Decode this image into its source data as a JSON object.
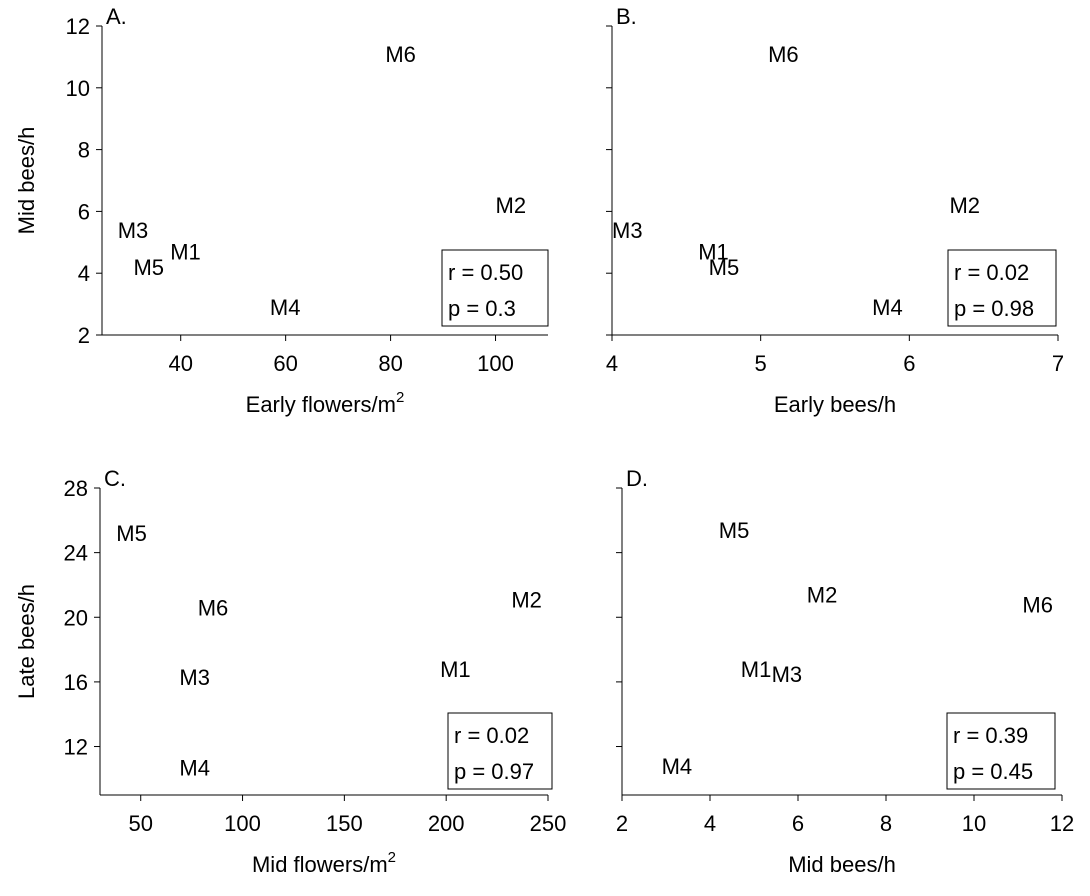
{
  "chart_data": [
    {
      "type": "scatter",
      "panel": "A.",
      "xlabel": "Early flowers/m",
      "xlabel_sup": "2",
      "ylabel": "Mid bees/h",
      "xlim": [
        25,
        110
      ],
      "ylim": [
        2,
        12
      ],
      "xticks": [
        40,
        60,
        80,
        100
      ],
      "yticks": [
        2,
        4,
        6,
        8,
        10,
        12
      ],
      "points": [
        {
          "label": "M1",
          "x": 38,
          "y": 4.7
        },
        {
          "label": "M2",
          "x": 100,
          "y": 6.2
        },
        {
          "label": "M3",
          "x": 28,
          "y": 5.4
        },
        {
          "label": "M4",
          "x": 57,
          "y": 2.9
        },
        {
          "label": "M5",
          "x": 31,
          "y": 4.2
        },
        {
          "label": "M6",
          "x": 79,
          "y": 11.1
        }
      ],
      "stats": {
        "r": "r = 0.50",
        "p": "p = 0.3"
      }
    },
    {
      "type": "scatter",
      "panel": "B.",
      "xlabel": "Early bees/h",
      "xlabel_sup": "",
      "ylabel": "",
      "xlim": [
        4,
        7
      ],
      "ylim": [
        2,
        12
      ],
      "xticks": [
        4,
        5,
        6,
        7
      ],
      "yticks": [
        2,
        4,
        6,
        8,
        10,
        12
      ],
      "show_ytick_labels": false,
      "points": [
        {
          "label": "M1",
          "x": 4.58,
          "y": 4.7
        },
        {
          "label": "M2",
          "x": 6.27,
          "y": 6.2
        },
        {
          "label": "M3",
          "x": 4.0,
          "y": 5.4
        },
        {
          "label": "M4",
          "x": 5.75,
          "y": 2.9
        },
        {
          "label": "M5",
          "x": 4.65,
          "y": 4.2
        },
        {
          "label": "M6",
          "x": 5.05,
          "y": 11.1
        }
      ],
      "stats": {
        "r": "r = 0.02",
        "p": "p = 0.98"
      }
    },
    {
      "type": "scatter",
      "panel": "C.",
      "xlabel": "Mid flowers/m",
      "xlabel_sup": "2",
      "ylabel": "Late bees/h",
      "xlim": [
        30,
        250
      ],
      "ylim": [
        9,
        28
      ],
      "xticks": [
        50,
        100,
        150,
        200,
        250
      ],
      "yticks": [
        12,
        16,
        20,
        24,
        28
      ],
      "points": [
        {
          "label": "M1",
          "x": 197,
          "y": 16.8
        },
        {
          "label": "M2",
          "x": 232,
          "y": 21.1
        },
        {
          "label": "M3",
          "x": 69,
          "y": 16.3
        },
        {
          "label": "M4",
          "x": 69,
          "y": 10.7
        },
        {
          "label": "M5",
          "x": 38,
          "y": 25.2
        },
        {
          "label": "M6",
          "x": 78,
          "y": 20.6
        }
      ],
      "stats": {
        "r": "r = 0.02",
        "p": "p = 0.97"
      }
    },
    {
      "type": "scatter",
      "panel": "D.",
      "xlabel": "Mid bees/h",
      "xlabel_sup": "",
      "ylabel": "",
      "xlim": [
        2,
        12
      ],
      "ylim": [
        9,
        28
      ],
      "xticks": [
        2,
        4,
        6,
        8,
        10,
        12
      ],
      "yticks": [
        12,
        16,
        20,
        24,
        28
      ],
      "show_ytick_labels": false,
      "points": [
        {
          "label": "M1",
          "x": 4.7,
          "y": 16.8
        },
        {
          "label": "M2",
          "x": 6.2,
          "y": 21.4
        },
        {
          "label": "M3",
          "x": 5.4,
          "y": 16.5
        },
        {
          "label": "M4",
          "x": 2.9,
          "y": 10.8
        },
        {
          "label": "M5",
          "x": 4.2,
          "y": 25.4
        },
        {
          "label": "M6",
          "x": 11.1,
          "y": 20.8
        }
      ],
      "stats": {
        "r": "r = 0.39",
        "p": "p = 0.45"
      }
    }
  ]
}
